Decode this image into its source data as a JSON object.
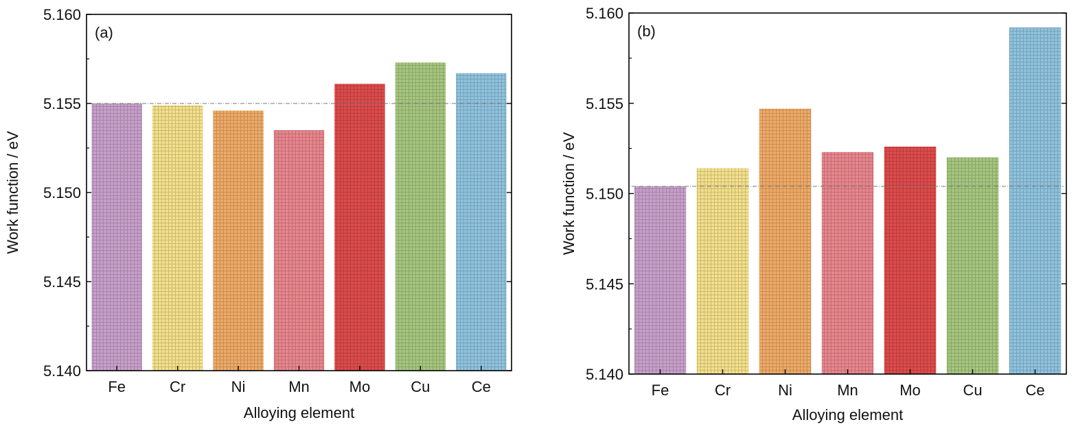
{
  "chart_data": [
    {
      "type": "bar",
      "panel_label": "(a)",
      "categories": [
        "Fe",
        "Cr",
        "Ni",
        "Mn",
        "Mo",
        "Cu",
        "Ce"
      ],
      "values": [
        5.155,
        5.1549,
        5.1546,
        5.1535,
        5.1561,
        5.1573,
        5.1567
      ],
      "xlabel": "Alloying element",
      "ylabel": "Work function / eV",
      "ylim": [
        5.14,
        5.16
      ],
      "yticks": [
        "5.140",
        "5.145",
        "5.150",
        "5.155",
        "5.160"
      ],
      "reference_line": 5.155,
      "grid": false,
      "colors": [
        "#c7a0c9",
        "#f3e08a",
        "#eeaa66",
        "#e8868d",
        "#dd4b4b",
        "#a6c67e",
        "#8fc3de"
      ]
    },
    {
      "type": "bar",
      "panel_label": "(b)",
      "categories": [
        "Fe",
        "Cr",
        "Ni",
        "Mn",
        "Mo",
        "Cu",
        "Ce"
      ],
      "values": [
        5.1504,
        5.1514,
        5.1547,
        5.1523,
        5.1526,
        5.152,
        5.1592
      ],
      "xlabel": "Alloying element",
      "ylabel": "Work function / eV",
      "ylim": [
        5.14,
        5.16
      ],
      "yticks": [
        "5.140",
        "5.145",
        "5.150",
        "5.155",
        "5.160"
      ],
      "reference_line": 5.1504,
      "grid": false,
      "colors": [
        "#c7a0c9",
        "#f3e08a",
        "#eeaa66",
        "#e8868d",
        "#dd4b4b",
        "#a6c67e",
        "#8fc3de"
      ]
    }
  ]
}
